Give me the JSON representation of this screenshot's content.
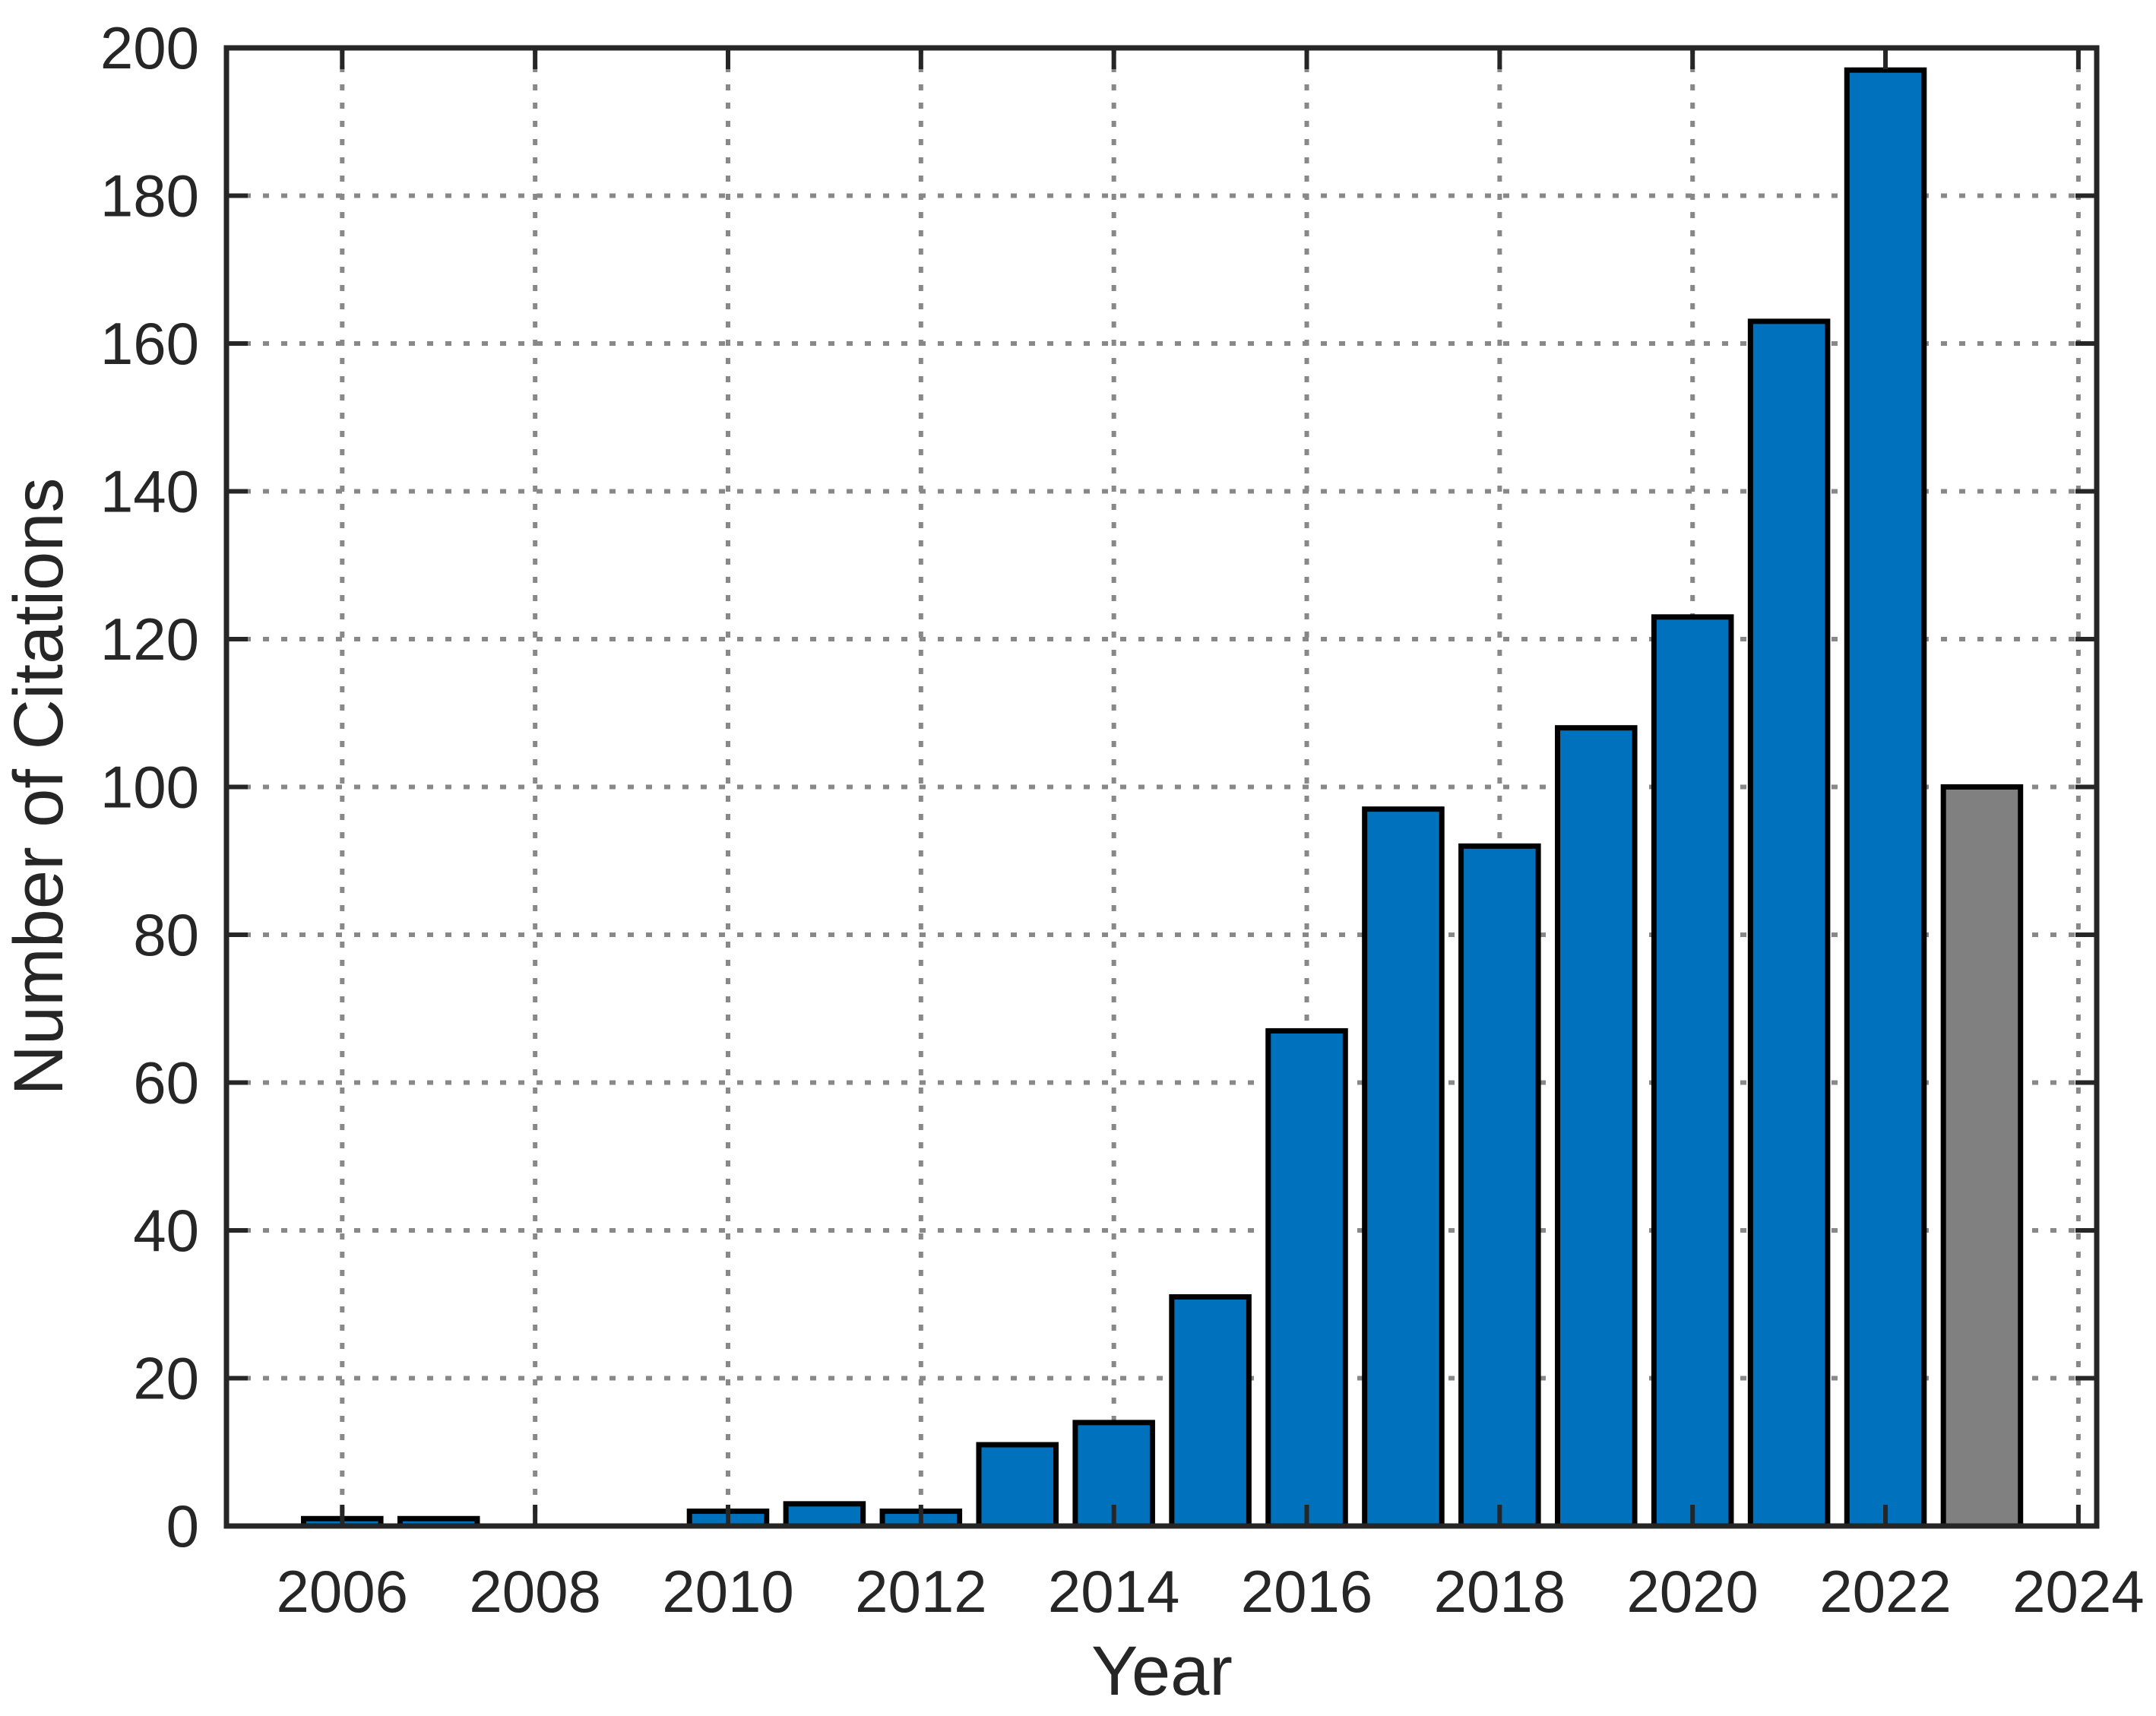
{
  "page": {
    "background": "#ffffff"
  },
  "chart_data": {
    "type": "bar",
    "title": "",
    "xlabel": "Year",
    "ylabel": "Number of Citations",
    "categories": [
      2006,
      2007,
      2008,
      2009,
      2010,
      2011,
      2012,
      2013,
      2014,
      2015,
      2016,
      2017,
      2018,
      2019,
      2020,
      2021,
      2022,
      2023
    ],
    "values": [
      1,
      1,
      0,
      0,
      2,
      3,
      2,
      11,
      14,
      31,
      67,
      97,
      92,
      108,
      123,
      163,
      197,
      100
    ],
    "bar_colors": [
      "#0072BD",
      "#0072BD",
      "#0072BD",
      "#0072BD",
      "#0072BD",
      "#0072BD",
      "#0072BD",
      "#0072BD",
      "#0072BD",
      "#0072BD",
      "#0072BD",
      "#0072BD",
      "#0072BD",
      "#0072BD",
      "#0072BD",
      "#0072BD",
      "#0072BD",
      "#808080"
    ],
    "xlim": [
      2004.8,
      2024.19
    ],
    "ylim": [
      0,
      200
    ],
    "x_ticks": [
      2006,
      2008,
      2010,
      2012,
      2014,
      2016,
      2018,
      2020,
      2022,
      2024
    ],
    "y_ticks": [
      0,
      20,
      40,
      60,
      80,
      100,
      120,
      140,
      160,
      180,
      200
    ],
    "bar_width_years": 0.8,
    "grid": "on",
    "grid_style": "dotted",
    "legend": "none",
    "colors": {
      "bar_default": "#0072BD",
      "bar_final_year": "#808080",
      "bar_edge": "#000000",
      "axis": "#262626",
      "grid": "#888888",
      "text": "#262626"
    }
  }
}
